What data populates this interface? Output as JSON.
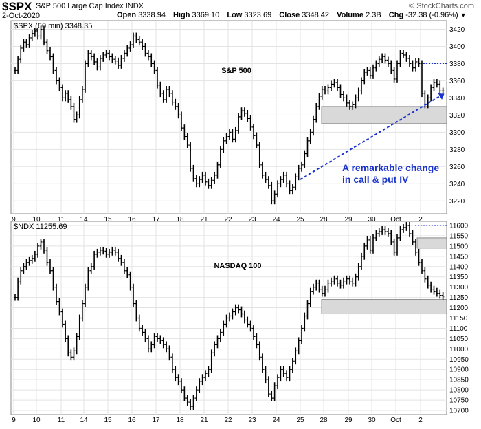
{
  "header": {
    "symbol": "$SPX",
    "name": "S&P 500 Large Cap Index",
    "exchange": "INDX",
    "date": "2-Oct-2020",
    "open_label": "Open",
    "open": "3338.94",
    "high_label": "High",
    "high": "3369.10",
    "low_label": "Low",
    "low": "3323.69",
    "close_label": "Close",
    "close": "3348.42",
    "volume_label": "Volume",
    "volume": "2.3B",
    "chg_label": "Chg",
    "chg": "-32.38 (-0.96%)",
    "watermark": "© StockCharts.com"
  },
  "x_labels": [
    "9",
    "10",
    "11",
    "14",
    "15",
    "16",
    "17",
    "18",
    "21",
    "22",
    "23",
    "24",
    "25",
    "28",
    "29",
    "30",
    "Oct",
    "2"
  ],
  "chart_data": [
    {
      "type": "line",
      "panel": "top",
      "symbol_label": "$SPX (60 min) 3348.35",
      "title": "S&P 500",
      "ylim": [
        3205,
        3430
      ],
      "yticks": [
        3220,
        3240,
        3260,
        3280,
        3300,
        3320,
        3340,
        3360,
        3380,
        3400,
        3420
      ],
      "x_labels": [
        "9",
        "10",
        "11",
        "14",
        "15",
        "16",
        "17",
        "18",
        "21",
        "22",
        "23",
        "24",
        "25",
        "28",
        "29",
        "30",
        "Oct",
        "2"
      ],
      "hourly_close": [
        3372,
        3385,
        3398,
        3405,
        3402,
        3410,
        3415,
        3418,
        3412,
        3420,
        3405,
        3395,
        3388,
        3372,
        3360,
        3352,
        3340,
        3345,
        3338,
        3330,
        3315,
        3320,
        3338,
        3350,
        3380,
        3392,
        3388,
        3382,
        3376,
        3386,
        3390,
        3392,
        3388,
        3385,
        3383,
        3378,
        3386,
        3392,
        3398,
        3402,
        3412,
        3408,
        3405,
        3400,
        3392,
        3388,
        3380,
        3372,
        3355,
        3345,
        3338,
        3350,
        3345,
        3335,
        3330,
        3320,
        3305,
        3295,
        3285,
        3258,
        3246,
        3240,
        3245,
        3250,
        3242,
        3238,
        3244,
        3250,
        3262,
        3280,
        3290,
        3295,
        3300,
        3292,
        3302,
        3318,
        3325,
        3322,
        3316,
        3306,
        3296,
        3285,
        3262,
        3250,
        3245,
        3238,
        3220,
        3228,
        3240,
        3245,
        3250,
        3240,
        3232,
        3236,
        3248,
        3258,
        3262,
        3275,
        3290,
        3300,
        3315,
        3330,
        3342,
        3350,
        3348,
        3352,
        3356,
        3358,
        3352,
        3344,
        3340,
        3334,
        3330,
        3332,
        3340,
        3348,
        3360,
        3370,
        3372,
        3366,
        3375,
        3380,
        3385,
        3388,
        3384,
        3380,
        3372,
        3362,
        3380,
        3392,
        3390,
        3386,
        3380,
        3375,
        3382,
        3380,
        3345,
        3332,
        3340,
        3352,
        3358,
        3356,
        3348,
        3348
      ],
      "reference_level": 3380,
      "support_zone": [
        3310,
        3330
      ],
      "annotation": "A remarkable change\nin call & put IV"
    },
    {
      "type": "line",
      "panel": "bottom",
      "symbol_label": "$NDX 11255.69",
      "title": "NASDAQ 100",
      "ylim": [
        10680,
        11620
      ],
      "yticks": [
        10700,
        10750,
        10800,
        10850,
        10900,
        10950,
        11000,
        11050,
        11100,
        11150,
        11200,
        11250,
        11300,
        11350,
        11400,
        11450,
        11500,
        11550,
        11600
      ],
      "x_labels": [
        "9",
        "10",
        "11",
        "14",
        "15",
        "16",
        "17",
        "18",
        "21",
        "22",
        "23",
        "24",
        "25",
        "28",
        "29",
        "30",
        "Oct",
        "2"
      ],
      "hourly_close": [
        11250,
        11330,
        11380,
        11400,
        11420,
        11430,
        11440,
        11460,
        11500,
        11520,
        11480,
        11420,
        11380,
        11300,
        11230,
        11180,
        11120,
        11050,
        10980,
        10960,
        10990,
        11060,
        11150,
        11220,
        11300,
        11380,
        11400,
        11460,
        11470,
        11480,
        11475,
        11460,
        11470,
        11480,
        11470,
        11440,
        11420,
        11380,
        11360,
        11300,
        11220,
        11150,
        11100,
        11080,
        11050,
        11000,
        11020,
        11060,
        11050,
        11040,
        11020,
        11000,
        10960,
        10900,
        10860,
        10840,
        10800,
        10760,
        10740,
        10720,
        10760,
        10800,
        10840,
        10860,
        10880,
        10900,
        10980,
        11020,
        11050,
        11080,
        11120,
        11150,
        11160,
        11180,
        11200,
        11190,
        11170,
        11140,
        11120,
        11100,
        11060,
        11020,
        10960,
        10900,
        10850,
        10780,
        10760,
        10820,
        10860,
        10900,
        10880,
        10860,
        10900,
        10940,
        10990,
        11040,
        11100,
        11160,
        11220,
        11280,
        11300,
        11320,
        11290,
        11270,
        11290,
        11320,
        11330,
        11340,
        11320,
        11310,
        11330,
        11340,
        11330,
        11320,
        11350,
        11400,
        11450,
        11500,
        11530,
        11480,
        11540,
        11560,
        11570,
        11580,
        11570,
        11560,
        11520,
        11470,
        11540,
        11580,
        11590,
        11600,
        11560,
        11520,
        11470,
        11420,
        11380,
        11340,
        11310,
        11290,
        11280,
        11270,
        11260,
        11256
      ],
      "reference_level": 11600,
      "support_zones": [
        [
          11490,
          11540
        ],
        [
          11170,
          11240
        ]
      ]
    }
  ]
}
